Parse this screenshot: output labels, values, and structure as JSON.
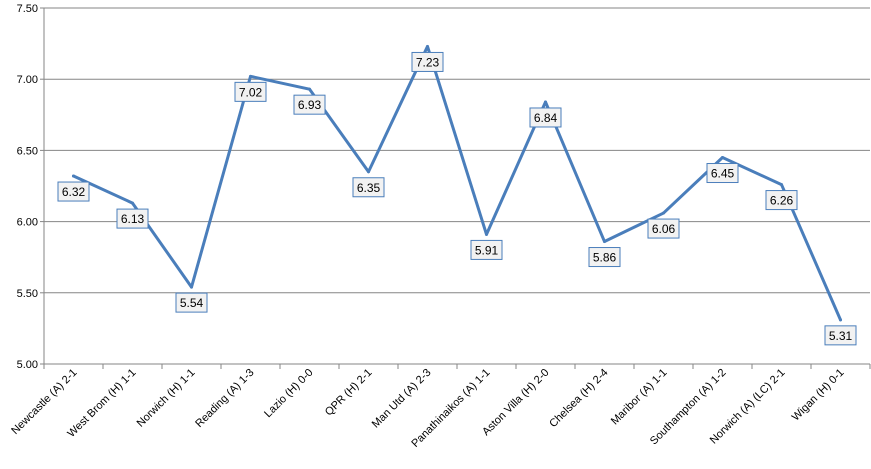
{
  "chart_data": {
    "type": "line",
    "title": "",
    "xlabel": "",
    "ylabel": "",
    "categories": [
      "Newcastle (A) 2-1",
      "West Brom (H) 1-1",
      "Norwich (H) 1-1",
      "Reading (A) 1-3",
      "Lazio (H) 0-0",
      "QPR (H) 2-1",
      "Man Utd (A) 2-3",
      "Panathinaikos (A) 1-1",
      "Aston Villa (H) 2-0",
      "Chelsea (H) 2-4",
      "Maribor (A) 1-1",
      "Southampton (A) 1-2",
      "Norwich (A) (LC) 2-1",
      "Wigan (H) 0-1"
    ],
    "series": [
      {
        "values": [
          6.32,
          6.13,
          5.54,
          7.02,
          6.93,
          6.35,
          7.23,
          5.91,
          6.84,
          5.86,
          6.06,
          6.45,
          6.26,
          5.31
        ],
        "color": "#4a7ebb"
      }
    ],
    "y_ticks": [
      "5.00",
      "5.50",
      "6.00",
      "6.50",
      "7.00",
      "7.50"
    ],
    "ylim": [
      5.0,
      7.5
    ],
    "grid": true,
    "legend": "none"
  }
}
